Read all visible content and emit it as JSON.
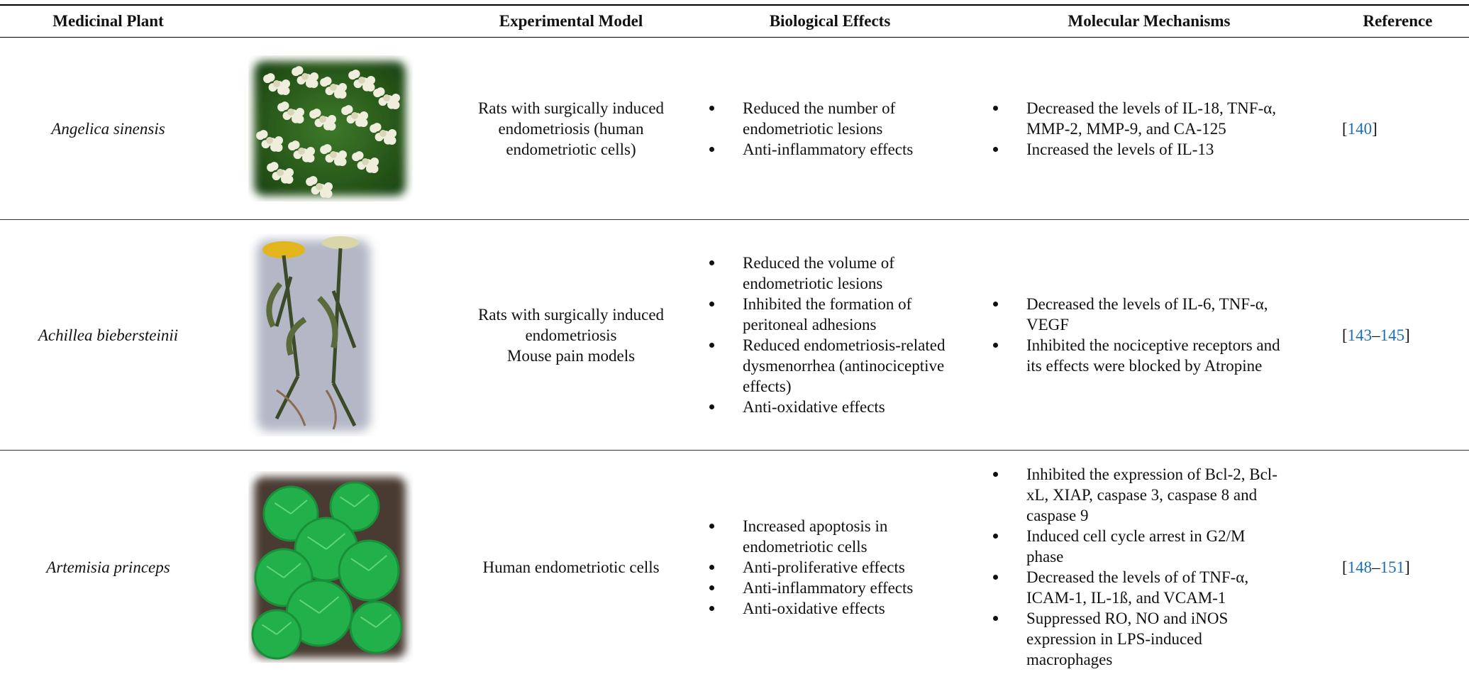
{
  "header": [
    "Medicinal Plant",
    "Experimental Model",
    "Biological Effects",
    "Molecular Mechanisms",
    "Reference"
  ],
  "rows": [
    {
      "plant": "Angelica sinensis",
      "model": [
        "Rats with surgically induced endometriosis (human endometriotic cells)"
      ],
      "effects": [
        "Reduced the number of endometriotic lesions",
        "Anti-inflammatory effects"
      ],
      "mechanisms": [
        "Decreased the levels of IL-18, TNF-α, MMP-2, MMP-9, and CA-125",
        "Increased the levels of IL-13"
      ],
      "reference": [
        "[",
        "140",
        "]"
      ]
    },
    {
      "plant": "Achillea biebersteinii",
      "model": [
        "Rats with surgically induced endometriosis",
        "Mouse pain models"
      ],
      "effects": [
        "Reduced the volume of endometriotic lesions",
        "Inhibited the formation of peritoneal adhesions",
        "Reduced endometriosis-related dysmenorrhea (antinociceptive effects)",
        "Anti-oxidative effects"
      ],
      "mechanisms": [
        "Decreased the levels of IL-6, TNF-α, VEGF",
        "Inhibited the nociceptive receptors and its effects were blocked by Atropine"
      ],
      "reference": [
        "[",
        "143",
        "–",
        "145",
        "]"
      ]
    },
    {
      "plant": "Artemisia princeps",
      "model": [
        "Human endometriotic cells"
      ],
      "effects": [
        "Increased apoptosis in endometriotic cells",
        "Anti-proliferative effects",
        "Anti-inflammatory effects",
        "Anti-oxidative effects"
      ],
      "mechanisms": [
        "Inhibited the expression of Bcl-2, Bcl-xL, XIAP, caspase 3, caspase 8 and caspase 9",
        "Induced cell cycle arrest in G2/M phase",
        "Decreased the levels of of TNF-α, ICAM-1, IL-1ß, and VCAM-1",
        "Suppressed RO, NO and iNOS expression in LPS-induced macrophages"
      ],
      "reference": [
        "[",
        "148",
        "–",
        "151",
        "]"
      ]
    }
  ]
}
